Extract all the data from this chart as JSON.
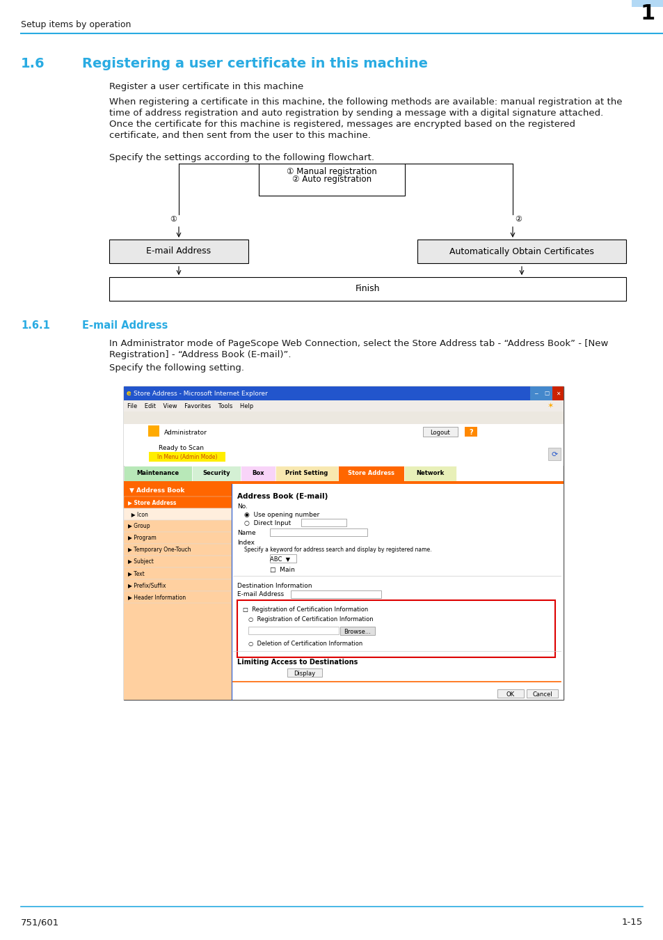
{
  "page_bg": "#ffffff",
  "header_text": "Setup items by operation",
  "header_tab_num": "1",
  "header_tab_bg": "#b3d9f5",
  "header_line_color": "#29abe2",
  "section_num": "1.6",
  "section_title": "Registering a user certificate in this machine",
  "section_title_color": "#29abe2",
  "subsection_num": "1.6.1",
  "subsection_title": "E-mail Address",
  "subsection_title_color": "#29abe2",
  "body_text_color": "#1a1a1a",
  "bold_text": "Register a user certificate in this machine",
  "para1_line1": "When registering a certificate in this machine, the following methods are available: manual registration at the",
  "para1_line2": "time of address registration and auto registration by sending a message with a digital signature attached.",
  "para1_line3": "Once the certificate for this machine is registered, messages are encrypted based on the registered",
  "para1_line4": "certificate, and then sent from the user to this machine.",
  "para2": "Specify the settings according to the following flowchart.",
  "flowchart_box1_line1": "① Manual registration",
  "flowchart_box1_line2": "② Auto registration",
  "flowchart_left_label": "①",
  "flowchart_right_label": "②",
  "flowchart_box_left": "E-mail Address",
  "flowchart_box_right": "Automatically Obtain Certificates",
  "flowchart_finish": "Finish",
  "subsec_para1_line1": "In Administrator mode of PageScope Web Connection, select the Store Address tab - “Address Book” - [New",
  "subsec_para1_line2": "Registration] - “Address Book (E-mail)”.",
  "subsec_para2": "Specify the following setting.",
  "footer_left": "751/601",
  "footer_right": "1-15",
  "font_family": "DejaVu Sans",
  "body_fontsize": 9.5,
  "header_fontsize": 9,
  "section_title_fontsize": 14,
  "subsection_title_fontsize": 10.5
}
